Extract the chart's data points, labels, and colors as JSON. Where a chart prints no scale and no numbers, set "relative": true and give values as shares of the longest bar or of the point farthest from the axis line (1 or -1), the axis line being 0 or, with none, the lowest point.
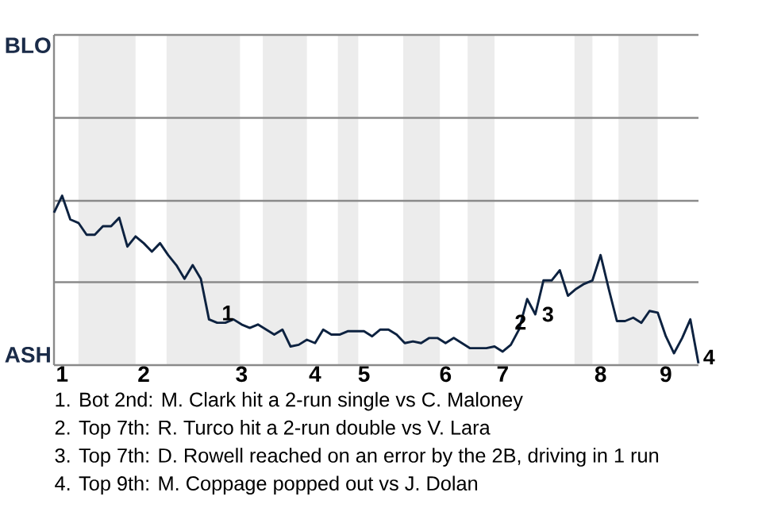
{
  "chart_data": {
    "type": "line",
    "relative": true,
    "categories": [
      null,
      "1",
      null,
      null,
      null,
      null,
      null,
      null,
      null,
      null,
      null,
      "2",
      null,
      null,
      null,
      null,
      null,
      null,
      null,
      null,
      null,
      null,
      null,
      "3",
      null,
      null,
      null,
      null,
      null,
      null,
      null,
      null,
      "4",
      null,
      null,
      null,
      null,
      null,
      "5",
      null,
      null,
      null,
      null,
      null,
      null,
      null,
      null,
      null,
      "6",
      null,
      null,
      null,
      null,
      null,
      null,
      "7",
      null,
      null,
      null,
      null,
      null,
      null,
      null,
      null,
      null,
      null,
      null,
      "8",
      null,
      null,
      null,
      null,
      null,
      null,
      null,
      "9",
      null,
      null,
      null,
      null
    ],
    "series": [
      {
        "color": "#0d2240",
        "values": [
          0.9,
          1.0,
          0.86,
          0.84,
          0.77,
          0.77,
          0.82,
          0.82,
          0.87,
          0.7,
          0.76,
          0.72,
          0.67,
          0.72,
          0.65,
          0.59,
          0.51,
          0.59,
          0.51,
          0.27,
          0.25,
          0.25,
          0.27,
          0.24,
          0.22,
          0.24,
          0.21,
          0.18,
          0.21,
          0.11,
          0.12,
          0.15,
          0.13,
          0.21,
          0.18,
          0.18,
          0.2,
          0.2,
          0.2,
          0.17,
          0.21,
          0.21,
          0.18,
          0.13,
          0.14,
          0.13,
          0.16,
          0.16,
          0.13,
          0.16,
          0.13,
          0.1,
          0.1,
          0.1,
          0.11,
          0.08,
          0.12,
          0.21,
          0.39,
          0.3,
          0.5,
          0.5,
          0.56,
          0.41,
          0.45,
          0.48,
          0.5,
          0.65,
          0.45,
          0.26,
          0.26,
          0.28,
          0.25,
          0.32,
          0.31,
          0.17,
          0.07,
          0.16,
          0.27,
          0.01
        ]
      }
    ],
    "ref_lines": [
      {
        "axis": "y",
        "value": 0.49,
        "color": "#8a8a8a"
      },
      {
        "axis": "y",
        "value": 0.97,
        "color": "#8a8a8a"
      },
      {
        "axis": "y",
        "value": 1.46,
        "color": "#8a8a8a"
      },
      {
        "axis": "y",
        "value": 1.95,
        "color": "#8a8a8a"
      }
    ],
    "marker": "none",
    "line_style": "solid",
    "annotations": [
      "BLO",
      "ASH",
      "1",
      "2",
      "3",
      "4",
      "1. Bot 2nd: M. Clark hit a 2-run single vs C. Maloney",
      "2. Top 7th: R. Turco hit a 2-run double vs V. Lara",
      "3. Top 7th: D. Rowell reached on an error by the 2B, driving in 1 run",
      "4. Top 9th: M. Coppage popped out vs J. Dolan"
    ]
  }
}
